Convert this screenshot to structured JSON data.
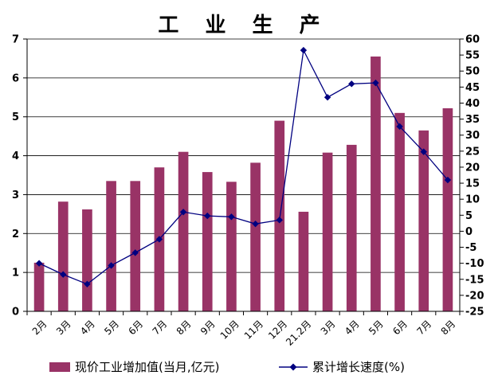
{
  "chart_data": {
    "type": "bar+line",
    "title": "工 业 生 产",
    "categories": [
      "2月",
      "3月",
      "4月",
      "5月",
      "6月",
      "7月",
      "8月",
      "9月",
      "10月",
      "11月",
      "12月",
      "21.2月",
      "3月",
      "4月",
      "5月",
      "6月",
      "7月",
      "8月"
    ],
    "series": [
      {
        "name": "现价工业增加值(当月,亿元)",
        "type": "bar",
        "axis": "left",
        "color": "#993366",
        "values": [
          1.25,
          2.82,
          2.62,
          3.35,
          3.35,
          3.7,
          4.1,
          3.58,
          3.33,
          3.82,
          4.9,
          2.56,
          4.08,
          4.28,
          6.55,
          5.1,
          4.65,
          5.22
        ]
      },
      {
        "name": "累计增长速度(%)",
        "type": "line",
        "axis": "right",
        "color": "#000080",
        "values": [
          -10,
          -13.5,
          -16.5,
          -10.7,
          -6.7,
          -2.5,
          6,
          4.8,
          4.5,
          2.3,
          3.5,
          56.5,
          41.8,
          46,
          46.3,
          32.7,
          24.8,
          16
        ]
      }
    ],
    "y_left": {
      "min": 0,
      "max": 7,
      "ticks": [
        "0",
        "1",
        "2",
        "3",
        "4",
        "5",
        "6",
        "7"
      ]
    },
    "y_right": {
      "min": -25,
      "max": 60,
      "ticks": [
        "-25",
        "-20",
        "-15",
        "-10",
        "-5",
        "0",
        "5",
        "10",
        "15",
        "20",
        "25",
        "30",
        "35",
        "40",
        "45",
        "50",
        "55",
        "60"
      ]
    },
    "grid": true,
    "legend_position": "bottom"
  }
}
